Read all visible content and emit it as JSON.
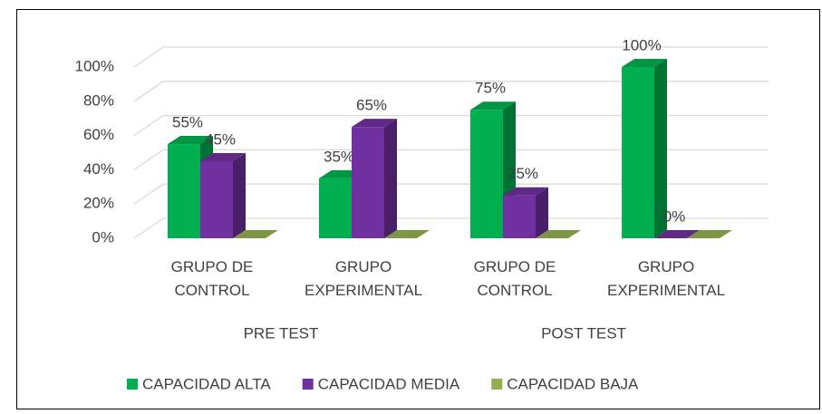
{
  "chart_data": {
    "type": "bar3d",
    "categories": [
      "GRUPO DE CONTROL",
      "GRUPO EXPERIMENTAL",
      "GRUPO DE CONTROL",
      "GRUPO EXPERIMENTAL"
    ],
    "category_groups": [
      "PRE TEST",
      "POST TEST"
    ],
    "series": [
      {
        "name": "CAPACIDAD ALTA",
        "color": "#00b050",
        "values": [
          55,
          35,
          75,
          100
        ],
        "value_labels": [
          "55%",
          "35%",
          "75%",
          "100%"
        ]
      },
      {
        "name": "CAPACIDAD MEDIA",
        "color": "#7030a0",
        "values": [
          45,
          65,
          25,
          0
        ],
        "value_labels": [
          "45%",
          "65%",
          "25%",
          "0%"
        ]
      },
      {
        "name": "CAPACIDAD BAJA",
        "color": "#92b050",
        "values": [
          0,
          0,
          0,
          0
        ]
      }
    ],
    "ylim": [
      0,
      100
    ],
    "yticks": [
      {
        "value": 0,
        "label": "0%"
      },
      {
        "value": 20,
        "label": "20%"
      },
      {
        "value": 40,
        "label": "40%"
      },
      {
        "value": 60,
        "label": "60%"
      },
      {
        "value": 80,
        "label": "80%"
      },
      {
        "value": 100,
        "label": "100%"
      }
    ],
    "grid": true,
    "legend": "bottom"
  }
}
